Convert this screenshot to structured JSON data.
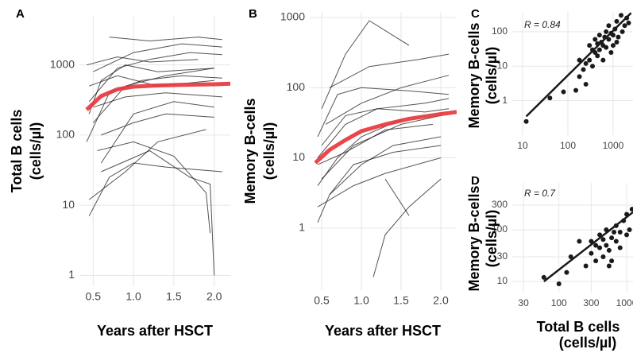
{
  "chart_data": [
    {
      "type": "line",
      "panel": "A",
      "y_label": [
        "Total B cells",
        "(cells/µl)"
      ],
      "x_label": "Years after HSCT",
      "log_y": true,
      "grid": true,
      "xlim": [
        0.33,
        2.2
      ],
      "ylim": [
        0.7,
        5000
      ],
      "xticks": [
        0.5,
        {
          "value": 1,
          "label": "1.0"
        },
        1.5,
        {
          "value": 2,
          "label": "2.0"
        }
      ],
      "yticks": [
        1,
        10,
        100,
        1000
      ],
      "series": [
        {
          "color": "#1a1a1a",
          "x": [
            0.45,
            0.8,
            1.2,
            1.7,
            2.1
          ],
          "values": [
            300,
            900,
            1200,
            1500,
            1400
          ]
        },
        {
          "color": "#1a1a1a",
          "x": [
            0.5,
            0.9,
            1.4,
            2.0
          ],
          "values": [
            150,
            500,
            700,
            900
          ]
        },
        {
          "color": "#1a1a1a",
          "x": [
            0.42,
            0.7,
            1.1,
            1.6,
            2.1
          ],
          "values": [
            80,
            400,
            600,
            700,
            650
          ]
        },
        {
          "color": "#1a1a1a",
          "x": [
            0.6,
            1.0,
            1.5,
            2.0
          ],
          "values": [
            40,
            200,
            300,
            250
          ]
        },
        {
          "color": "#1a1a1a",
          "x": [
            0.45,
            0.9,
            1.3,
            1.9
          ],
          "values": [
            12,
            30,
            80,
            120
          ]
        },
        {
          "color": "#1a1a1a",
          "x": [
            0.5,
            1.0,
            1.6,
            2.1
          ],
          "values": [
            800,
            1500,
            2000,
            1800
          ]
        },
        {
          "color": "#1a1a1a",
          "x": [
            0.7,
            1.2,
            1.8,
            2.1
          ],
          "values": [
            2500,
            2200,
            2500,
            2300
          ]
        },
        {
          "color": "#1a1a1a",
          "x": [
            0.45,
            0.8,
            1.3,
            2.0
          ],
          "values": [
            500,
            700,
            500,
            600
          ]
        },
        {
          "color": "#1a1a1a",
          "x": [
            0.55,
            1.0,
            1.5,
            1.9,
            1.95
          ],
          "values": [
            60,
            80,
            50,
            15,
            4
          ]
        },
        {
          "color": "#1a1a1a",
          "x": [
            0.6,
            1.2,
            1.7,
            1.95,
            2.0
          ],
          "values": [
            30,
            60,
            25,
            20,
            1
          ]
        },
        {
          "color": "#1a1a1a",
          "x": [
            0.45,
            0.7,
            1.0,
            1.4,
            2.1
          ],
          "values": [
            7,
            25,
            40,
            35,
            30
          ]
        },
        {
          "color": "#1a1a1a",
          "x": [
            0.5,
            0.9,
            1.4,
            2.1
          ],
          "values": [
            250,
            350,
            400,
            350
          ]
        },
        {
          "color": "#1a1a1a",
          "x": [
            0.42,
            0.8,
            1.2,
            1.8
          ],
          "values": [
            1000,
            1300,
            1100,
            1200
          ]
        },
        {
          "color": "#1a1a1a",
          "x": [
            0.6,
            1.0,
            1.4,
            2.0
          ],
          "values": [
            100,
            150,
            200,
            180
          ]
        },
        {
          "color": "#1a1a1a",
          "x": [
            0.45,
            0.6,
            0.9,
            1.3,
            2.0
          ],
          "values": [
            200,
            600,
            1000,
            800,
            900
          ]
        },
        {
          "color": "#e8333a",
          "x": [
            0.42,
            0.6,
            0.8,
            1.0,
            1.3,
            1.6,
            2.0,
            2.2
          ],
          "values": [
            230,
            360,
            450,
            490,
            510,
            520,
            530,
            540
          ]
        }
      ]
    },
    {
      "type": "line",
      "panel": "B",
      "y_label": [
        "Memory B-cells",
        "(cells/µl)"
      ],
      "x_label": "Years after HSCT",
      "log_y": true,
      "grid": true,
      "xlim": [
        0.35,
        2.2
      ],
      "ylim": [
        0.13,
        1200
      ],
      "xticks": [
        0.5,
        {
          "value": 1,
          "label": "1.0"
        },
        1.5,
        {
          "value": 2,
          "label": "2.0"
        }
      ],
      "yticks": [
        1,
        10,
        100,
        1000
      ],
      "series": [
        {
          "color": "#1a1a1a",
          "x": [
            0.45,
            0.8,
            1.2,
            1.8,
            2.1
          ],
          "values": [
            10,
            30,
            50,
            60,
            70
          ]
        },
        {
          "color": "#1a1a1a",
          "x": [
            0.5,
            0.9,
            1.5,
            2.0
          ],
          "values": [
            5,
            15,
            30,
            40
          ]
        },
        {
          "color": "#1a1a1a",
          "x": [
            0.45,
            0.7,
            1.0,
            1.6,
            2.1
          ],
          "values": [
            20,
            80,
            100,
            90,
            80
          ]
        },
        {
          "color": "#1a1a1a",
          "x": [
            0.6,
            1.0,
            1.4,
            2.0
          ],
          "values": [
            3,
            8,
            15,
            20
          ]
        },
        {
          "color": "#1a1a1a",
          "x": [
            0.5,
            0.8,
            1.1,
            1.6
          ],
          "values": [
            50,
            300,
            900,
            400
          ]
        },
        {
          "color": "#1a1a1a",
          "x": [
            0.45,
            0.9,
            1.3,
            2.0
          ],
          "values": [
            2,
            4,
            6,
            10
          ]
        },
        {
          "color": "#1a1a1a",
          "x": [
            0.55,
            1.0,
            1.5,
            2.1
          ],
          "values": [
            30,
            60,
            100,
            150
          ]
        },
        {
          "color": "#1a1a1a",
          "x": [
            1.15,
            1.3,
            1.6,
            2.0
          ],
          "values": [
            0.2,
            0.8,
            2,
            5
          ]
        },
        {
          "color": "#1a1a1a",
          "x": [
            0.45,
            0.8,
            1.3,
            1.9
          ],
          "values": [
            8,
            12,
            25,
            30
          ]
        },
        {
          "color": "#1a1a1a",
          "x": [
            0.6,
            1.1,
            1.7,
            2.1
          ],
          "values": [
            100,
            200,
            250,
            300
          ]
        },
        {
          "color": "#1a1a1a",
          "x": [
            0.45,
            0.6,
            0.9,
            1.4,
            2.0
          ],
          "values": [
            1.2,
            3,
            8,
            12,
            15
          ]
        },
        {
          "color": "#1a1a1a",
          "x": [
            1.3,
            1.6
          ],
          "values": [
            5,
            1.5
          ]
        },
        {
          "color": "#1a1a1a",
          "x": [
            0.5,
            0.8,
            1.2,
            1.8,
            2.1
          ],
          "values": [
            15,
            40,
            50,
            45,
            50
          ]
        },
        {
          "color": "#1a1a1a",
          "x": [
            0.45,
            0.7,
            1.0,
            1.5
          ],
          "values": [
            4,
            10,
            20,
            35
          ]
        },
        {
          "color": "#e8333a",
          "x": [
            0.42,
            0.6,
            0.8,
            1.0,
            1.3,
            1.6,
            2.0,
            2.2
          ],
          "values": [
            8.5,
            13,
            18,
            24,
            30,
            36,
            42,
            45
          ]
        }
      ]
    },
    {
      "type": "scatter",
      "panel": "C",
      "y_label": [
        "Memory B-cells",
        "(cells/µl)"
      ],
      "annotation": "R = 0.84",
      "log_x": true,
      "log_y": true,
      "grid": true,
      "color": "#1a1a1a",
      "xlim": [
        5.9,
        2750
      ],
      "ylim": [
        0.1,
        375
      ],
      "xticks": [
        10,
        100,
        1000
      ],
      "yticks": [
        1,
        10,
        100
      ],
      "x": [
        12,
        40,
        80,
        150,
        180,
        220,
        250,
        300,
        300,
        350,
        400,
        400,
        450,
        500,
        500,
        550,
        600,
        600,
        700,
        700,
        800,
        800,
        900,
        1000,
        1000,
        1100,
        1200,
        1300,
        1500,
        1600,
        1800,
        2000,
        250,
        350,
        450,
        650,
        900,
        1200,
        180,
        2200
      ],
      "values": [
        0.25,
        1.2,
        1.8,
        2,
        5,
        8,
        3,
        15,
        40,
        10,
        25,
        60,
        20,
        30,
        80,
        50,
        15,
        40,
        100,
        35,
        60,
        150,
        25,
        80,
        40,
        120,
        200,
        70,
        300,
        100,
        150,
        250,
        12,
        30,
        45,
        70,
        90,
        50,
        15,
        180
      ],
      "fit": {
        "x": [
          12,
          2500
        ],
        "values": [
          0.35,
          350
        ]
      }
    },
    {
      "type": "scatter",
      "panel": "D",
      "y_label": [
        "Memory B-cells",
        "(cells/µl)"
      ],
      "x_label": [
        "Total B cells",
        "(cells/µl)"
      ],
      "annotation": "R = 0.7",
      "log_x": true,
      "log_y": true,
      "grid": true,
      "color": "#1a1a1a",
      "xlim": [
        20.5,
        1240
      ],
      "ylim": [
        6.1,
        810
      ],
      "xticks": [
        30,
        100,
        300,
        1000
      ],
      "yticks": [
        10,
        30,
        100,
        300
      ],
      "x": [
        60,
        100,
        130,
        200,
        250,
        300,
        300,
        350,
        400,
        400,
        450,
        500,
        500,
        550,
        600,
        600,
        700,
        700,
        800,
        800,
        900,
        1000,
        1000,
        1100,
        1200,
        350,
        450,
        650,
        550,
        150
      ],
      "values": [
        12,
        9,
        15,
        60,
        20,
        35,
        60,
        25,
        45,
        80,
        30,
        50,
        100,
        40,
        70,
        25,
        60,
        120,
        90,
        45,
        150,
        80,
        200,
        100,
        250,
        50,
        65,
        90,
        20,
        30
      ],
      "fit": {
        "x": [
          60,
          1240
        ],
        "values": [
          10,
          220
        ]
      }
    }
  ]
}
